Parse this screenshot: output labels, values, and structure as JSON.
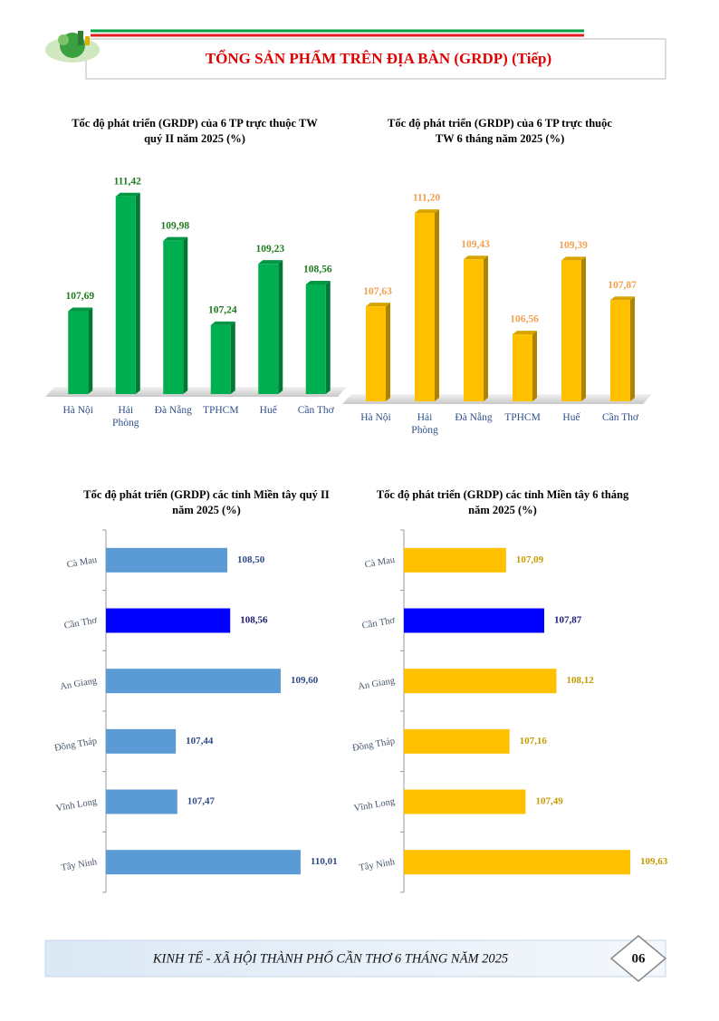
{
  "header": {
    "title": "TỔNG SẢN PHẨM TRÊN ĐỊA BÀN (GRDP) (Tiếp)"
  },
  "chart_data": [
    {
      "type": "bar",
      "orientation": "vertical",
      "title": "Tốc độ phát triển (GRDP) của 6 TP trực thuộc TW quý II năm 2025 (%)",
      "categories": [
        "Hà Nội",
        "Hải Phòng",
        "Đà Nẵng",
        "TPHCM",
        "Huế",
        "Cần Thơ"
      ],
      "values": [
        107.69,
        111.42,
        109.98,
        107.24,
        109.23,
        108.56
      ],
      "value_labels": [
        "107,69",
        "111,42",
        "109,98",
        "107,24",
        "109,23",
        "108,56"
      ],
      "color": "#00b050",
      "label_color": "#1f7a1f",
      "ylim": [
        105,
        112
      ]
    },
    {
      "type": "bar",
      "orientation": "vertical",
      "title": "Tốc độ phát triển (GRDP) của 6 TP trực thuộc TW 6 tháng năm 2025 (%)",
      "categories": [
        "Hà Nội",
        "Hải Phòng",
        "Đà Nẵng",
        "TPHCM",
        "Huế",
        "Cần Thơ"
      ],
      "values": [
        107.63,
        111.2,
        109.43,
        106.56,
        109.39,
        107.87
      ],
      "value_labels": [
        "107,63",
        "111,20",
        "109,43",
        "106,56",
        "109,39",
        "107,87"
      ],
      "color": "#ffc000",
      "label_color": "#f0a050",
      "ylim": [
        104,
        112
      ]
    },
    {
      "type": "bar",
      "orientation": "horizontal",
      "title": "Tốc độ phát triển (GRDP) các tỉnh Miền tây quý II năm 2025 (%)",
      "categories": [
        "Cà Mau",
        "Cần Thơ",
        "An Giang",
        "Đồng Tháp",
        "Vĩnh Long",
        "Tây Ninh"
      ],
      "values": [
        108.5,
        108.56,
        109.6,
        107.44,
        107.47,
        110.01
      ],
      "value_labels": [
        "108,50",
        "108,56",
        "109,60",
        "107,44",
        "107,47",
        "110,01"
      ],
      "colors": [
        "#5b9bd5",
        "#0000ff",
        "#5b9bd5",
        "#5b9bd5",
        "#5b9bd5",
        "#5b9bd5"
      ],
      "label_color": "#2f4b8a",
      "xlim": [
        106,
        111
      ]
    },
    {
      "type": "bar",
      "orientation": "horizontal",
      "title": "Tốc độ phát triển (GRDP) các tỉnh Miền tây 6 tháng năm 2025 (%)",
      "categories": [
        "Cà Mau",
        "Cần Thơ",
        "An Giang",
        "Đồng Tháp",
        "Vĩnh Long",
        "Tây Ninh"
      ],
      "values": [
        107.09,
        107.87,
        108.12,
        107.16,
        107.49,
        109.63
      ],
      "value_labels": [
        "107,09",
        "107,87",
        "108,12",
        "107,16",
        "107,49",
        "109,63"
      ],
      "colors": [
        "#ffc000",
        "#0000ff",
        "#ffc000",
        "#ffc000",
        "#ffc000",
        "#ffc000"
      ],
      "label_color": "#c59b00",
      "xlim": [
        105,
        110
      ]
    }
  ],
  "footer": {
    "text": "KINH TẾ - XÃ HỘI THÀNH PHỐ CẦN THƠ 6 THÁNG NĂM 2025",
    "page": "06"
  }
}
